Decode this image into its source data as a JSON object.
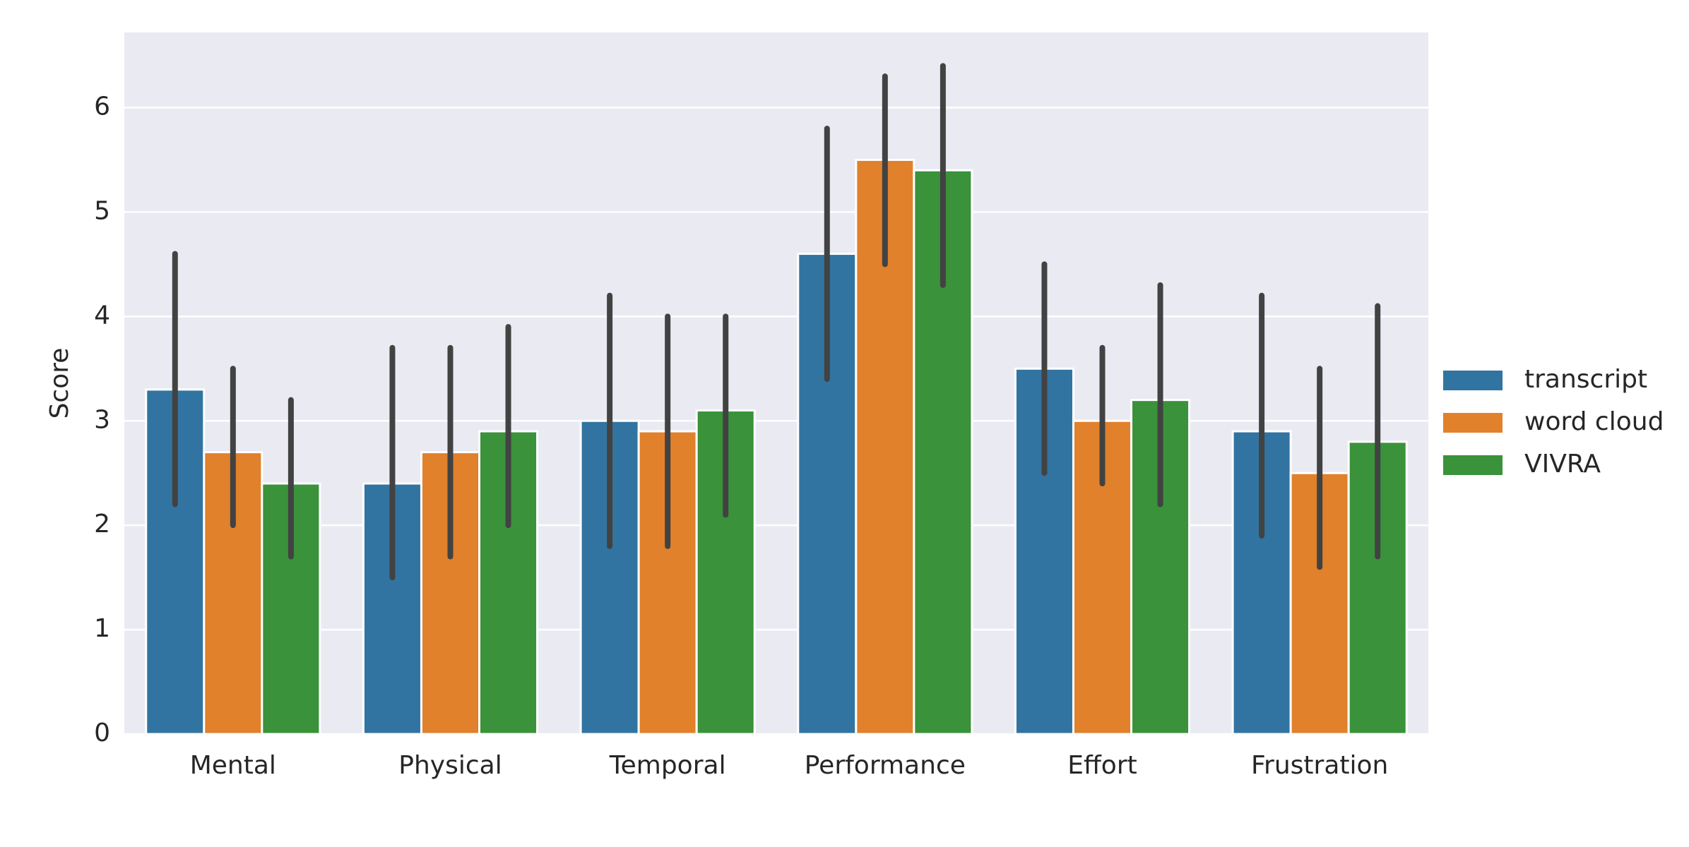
{
  "chart_data": {
    "type": "bar",
    "ylabel": "Score",
    "categories": [
      "Mental",
      "Physical",
      "Temporal",
      "Performance",
      "Effort",
      "Frustration"
    ],
    "series": [
      {
        "name": "transcript",
        "color": "#3274a1",
        "values": [
          3.3,
          2.4,
          3.0,
          4.6,
          3.5,
          2.9
        ],
        "ci_low": [
          2.2,
          1.5,
          1.8,
          3.4,
          2.5,
          1.9
        ],
        "ci_high": [
          4.6,
          3.7,
          4.2,
          5.8,
          4.5,
          4.2
        ]
      },
      {
        "name": "word cloud",
        "color": "#e1812c",
        "values": [
          2.7,
          2.7,
          2.9,
          5.5,
          3.0,
          2.5
        ],
        "ci_low": [
          2.0,
          1.7,
          1.8,
          4.5,
          2.4,
          1.6
        ],
        "ci_high": [
          3.5,
          3.7,
          4.0,
          6.3,
          3.7,
          3.5
        ]
      },
      {
        "name": "VIVRA",
        "color": "#3a923a",
        "values": [
          2.4,
          2.9,
          3.1,
          5.4,
          3.2,
          2.8
        ],
        "ci_low": [
          1.7,
          2.0,
          2.1,
          4.3,
          2.2,
          1.7
        ],
        "ci_high": [
          3.2,
          3.9,
          4.0,
          6.4,
          4.3,
          4.1
        ]
      }
    ],
    "ylim": [
      0,
      6.72
    ],
    "yticks": [
      0,
      1,
      2,
      3,
      4,
      5,
      6
    ],
    "grid": true,
    "legend": "right",
    "errorbar_color": "#424242",
    "background": "#eaeaf2"
  }
}
